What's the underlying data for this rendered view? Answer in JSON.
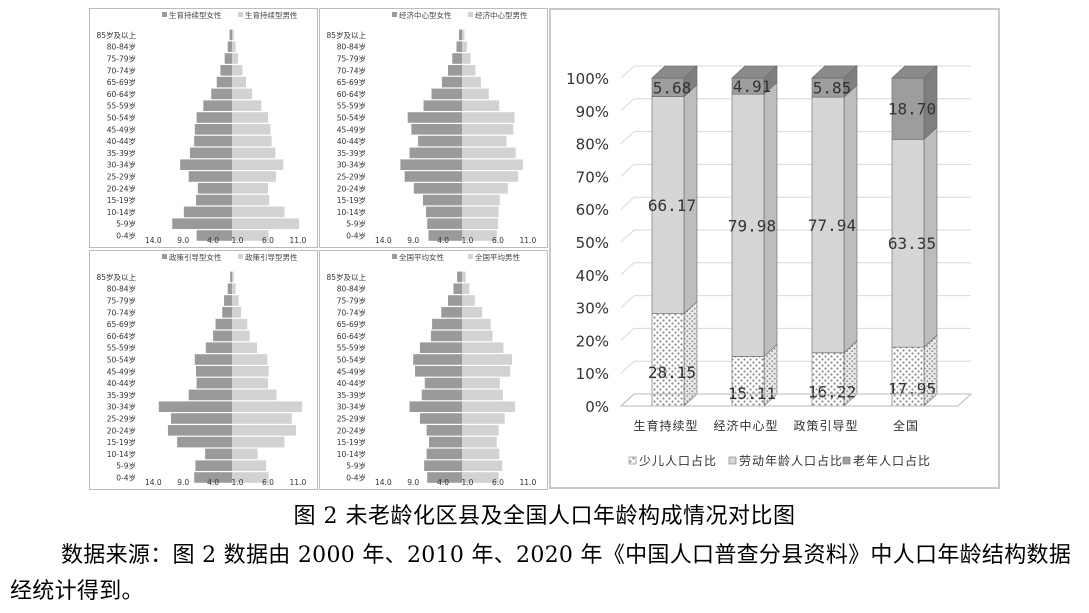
{
  "chart_data": [
    {
      "type": "bar",
      "subtype": "population-pyramid",
      "age_groups": [
        "0-4岁",
        "5-9岁",
        "10-14岁",
        "15-19岁",
        "20-24岁",
        "25-29岁",
        "30-34岁",
        "35-39岁",
        "40-44岁",
        "45-49岁",
        "50-54岁",
        "55-59岁",
        "60-64岁",
        "65-69岁",
        "70-74岁",
        "75-79岁",
        "80-84岁",
        "85岁及以上"
      ],
      "series": [
        {
          "name": "生育持续型女性",
          "values": [
            5.8,
            9.8,
            7.9,
            5.9,
            5.6,
            7.1,
            8.5,
            6.9,
            6.2,
            6.1,
            5.8,
            4.7,
            3.4,
            2.5,
            1.9,
            1.2,
            0.7,
            0.4
          ]
        },
        {
          "name": "生育持续型男性",
          "values": [
            6.0,
            11.0,
            8.6,
            6.1,
            5.9,
            7.2,
            8.4,
            7.1,
            6.5,
            6.3,
            5.9,
            4.8,
            3.3,
            2.3,
            1.7,
            1.0,
            0.6,
            0.3
          ]
        }
      ],
      "xticks": [
        "14.0",
        "9.0",
        "4.0",
        "1.0",
        "6.0",
        "11.0"
      ]
    },
    {
      "type": "bar",
      "subtype": "population-pyramid",
      "age_groups": [
        "0-4岁",
        "5-9岁",
        "10-14岁",
        "15-19岁",
        "20-24岁",
        "25-29岁",
        "30-34岁",
        "35-39岁",
        "40-44岁",
        "45-49岁",
        "50-54岁",
        "55-59岁",
        "60-64岁",
        "65-69岁",
        "70-74岁",
        "75-79岁",
        "80-84岁",
        "85岁及以上"
      ],
      "series": [
        {
          "name": "经济中心型女性",
          "values": [
            5.5,
            5.7,
            5.9,
            6.4,
            7.9,
            9.4,
            10.1,
            8.6,
            7.2,
            8.3,
            8.9,
            6.3,
            5.0,
            3.3,
            2.3,
            1.6,
            0.9,
            0.5
          ]
        },
        {
          "name": "经济中心型男性",
          "values": [
            5.7,
            5.9,
            6.0,
            6.2,
            7.5,
            9.2,
            10.0,
            8.8,
            7.3,
            8.4,
            8.6,
            6.1,
            4.4,
            3.1,
            2.2,
            1.4,
            0.8,
            0.4
          ]
        }
      ],
      "xticks": [
        "14.0",
        "9.0",
        "4.0",
        "1.0",
        "6.0",
        "11.0"
      ]
    },
    {
      "type": "bar",
      "subtype": "population-pyramid",
      "age_groups": [
        "0-4岁",
        "5-9岁",
        "10-14岁",
        "15-19岁",
        "20-24岁",
        "25-29岁",
        "30-34岁",
        "35-39岁",
        "40-44岁",
        "45-49岁",
        "50-54岁",
        "55-59岁",
        "60-64岁",
        "65-69岁",
        "70-74岁",
        "75-79岁",
        "80-84岁",
        "85岁及以上"
      ],
      "series": [
        {
          "name": "政策引导型女性",
          "values": [
            6.2,
            6.0,
            4.4,
            9.0,
            10.5,
            10.0,
            12.0,
            7.1,
            5.8,
            5.9,
            6.1,
            4.3,
            3.1,
            2.7,
            1.6,
            1.3,
            0.7,
            0.3
          ]
        },
        {
          "name": "政策引导型男性",
          "values": [
            6.0,
            5.6,
            4.2,
            8.6,
            10.5,
            9.8,
            11.5,
            7.3,
            5.9,
            6.0,
            5.8,
            4.1,
            2.9,
            2.5,
            1.5,
            1.1,
            0.6,
            0.3
          ]
        }
      ],
      "xticks": [
        "14.0",
        "9.0",
        "4.0",
        "1.0",
        "6.0",
        "11.0"
      ]
    },
    {
      "type": "bar",
      "subtype": "population-pyramid",
      "age_groups": [
        "0-4岁",
        "5-9岁",
        "10-14岁",
        "15-19岁",
        "20-24岁",
        "25-29岁",
        "30-34岁",
        "35-39岁",
        "40-44岁",
        "45-49岁",
        "50-54岁",
        "55-59岁",
        "60-64岁",
        "65-69岁",
        "70-74岁",
        "75-79岁",
        "80-84岁",
        "85岁及以上"
      ],
      "series": [
        {
          "name": "全国平均女性",
          "values": [
            5.7,
            6.2,
            5.8,
            5.4,
            5.8,
            6.9,
            8.6,
            6.6,
            6.1,
            7.7,
            8.0,
            6.9,
            5.1,
            4.9,
            3.4,
            2.3,
            1.4,
            0.8
          ]
        },
        {
          "name": "全国平均男性",
          "values": [
            6.0,
            6.6,
            6.1,
            5.7,
            6.0,
            7.0,
            8.7,
            6.7,
            6.2,
            7.9,
            8.2,
            6.8,
            5.0,
            4.7,
            3.3,
            2.1,
            1.2,
            0.6
          ]
        }
      ],
      "xticks": [
        "14.0",
        "9.0",
        "4.0",
        "1.0",
        "6.0",
        "11.0"
      ]
    },
    {
      "type": "bar",
      "subtype": "stacked-3d-percent",
      "categories": [
        "生育持续型",
        "经济中心型",
        "政策引导型",
        "全国"
      ],
      "series": [
        {
          "name": "少儿人口占比",
          "values": [
            28.15,
            15.11,
            16.22,
            17.95
          ],
          "labels": [
            "28.15",
            "15.11",
            "16.22",
            "17.95"
          ]
        },
        {
          "name": "劳动年龄人口占比",
          "values": [
            66.17,
            79.98,
            77.94,
            63.35
          ],
          "labels": [
            "66.17",
            "79.98",
            "77.94",
            "63.35"
          ]
        },
        {
          "name": "老年人口占比",
          "values": [
            5.68,
            4.91,
            5.85,
            18.7
          ],
          "labels": [
            "5.68",
            "4.91",
            "5.85",
            "18.70"
          ]
        }
      ],
      "yticks": [
        "0%",
        "10%",
        "20%",
        "30%",
        "40%",
        "50%",
        "60%",
        "70%",
        "80%",
        "90%",
        "100%"
      ],
      "ylim": [
        0,
        100
      ],
      "legend": "bottom",
      "grid": true
    }
  ],
  "caption": "图 2 未老龄化区县及全国人口年龄构成情况对比图",
  "source_note": "数据来源：图 2 数据由 2000 年、2010 年、2020 年《中国人口普查分县资料》中人口年龄结构数据经统计得到。",
  "colors": {
    "female_bar": "#9a9a9a",
    "male_bar": "#d2d2d2",
    "child": "#ffffff",
    "labor": "#d6d6d6",
    "elderly": "#9d9d9d",
    "grid": "#d9d9d9"
  }
}
